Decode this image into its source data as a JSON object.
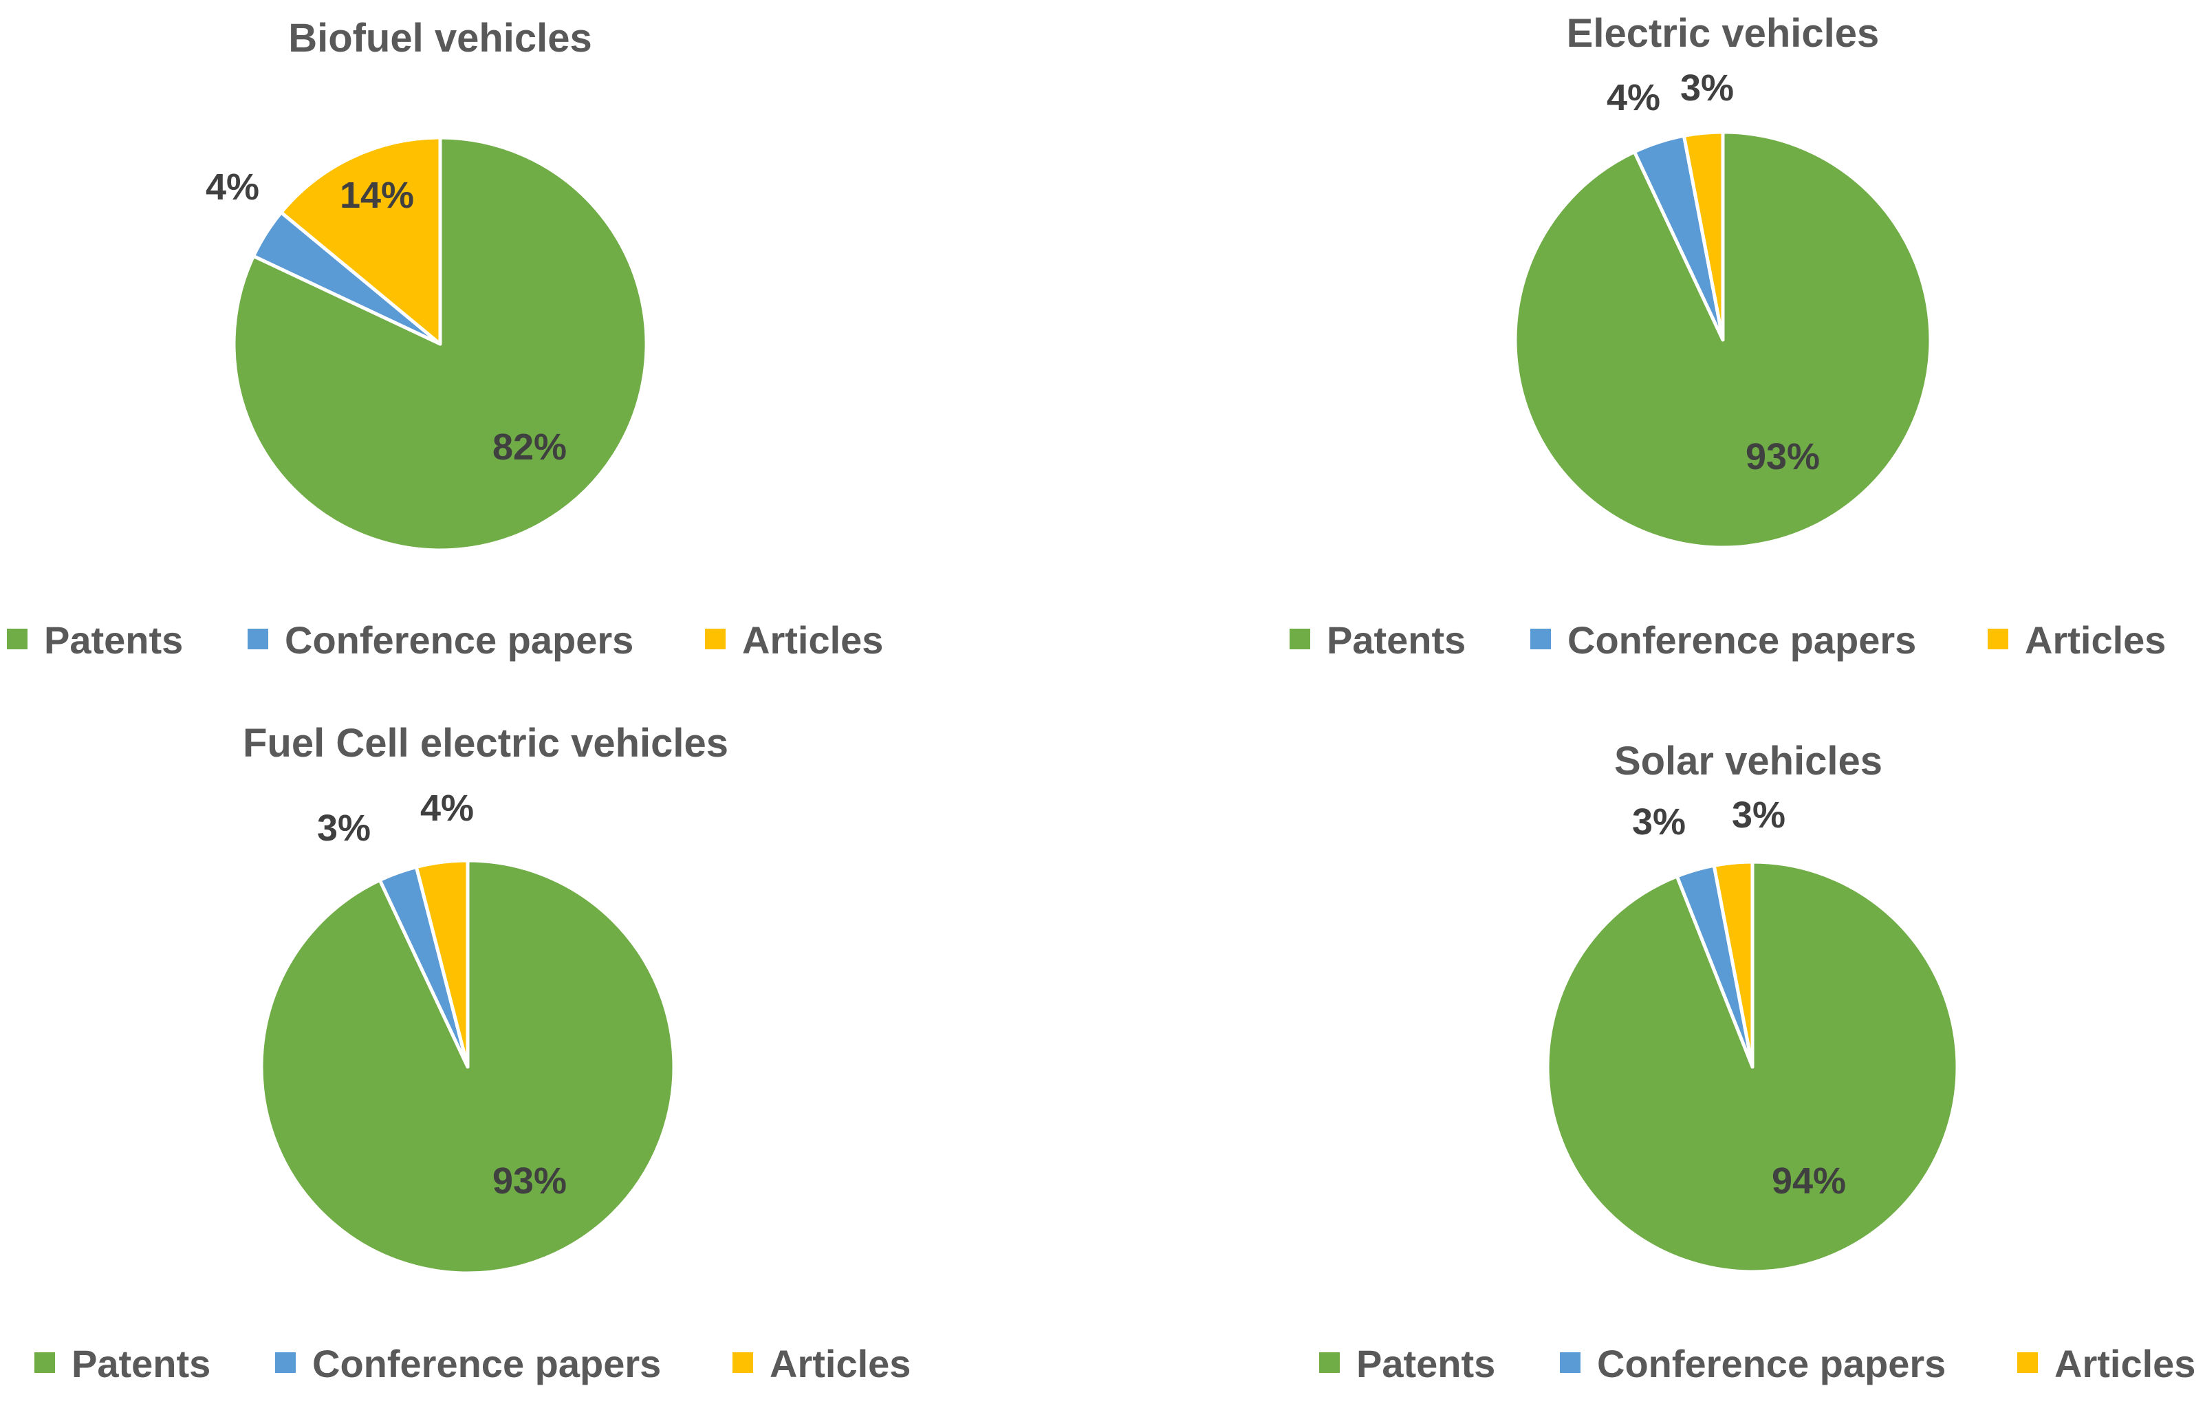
{
  "chart_data": [
    {
      "type": "pie",
      "title": "Biofuel vehicles",
      "categories": [
        "Patents",
        "Conference papers",
        "Articles"
      ],
      "values": [
        82,
        4,
        14
      ],
      "data_labels": [
        "82%",
        "4%",
        "14%"
      ],
      "colors": [
        "#70AD47",
        "#5B9BD5",
        "#FFC000"
      ],
      "legend_position": "bottom"
    },
    {
      "type": "pie",
      "title": "Electric vehicles",
      "categories": [
        "Patents",
        "Conference papers",
        "Articles"
      ],
      "values": [
        93,
        4,
        3
      ],
      "data_labels": [
        "93%",
        "4%",
        "3%"
      ],
      "colors": [
        "#70AD47",
        "#5B9BD5",
        "#FFC000"
      ],
      "legend_position": "bottom"
    },
    {
      "type": "pie",
      "title": "Fuel Cell electric vehicles",
      "categories": [
        "Patents",
        "Conference papers",
        "Articles"
      ],
      "values": [
        93,
        3,
        4
      ],
      "data_labels": [
        "93%",
        "3%",
        "4%"
      ],
      "colors": [
        "#70AD47",
        "#5B9BD5",
        "#FFC000"
      ],
      "legend_position": "bottom"
    },
    {
      "type": "pie",
      "title": "Solar vehicles",
      "categories": [
        "Patents",
        "Conference papers",
        "Articles"
      ],
      "values": [
        94,
        3,
        3
      ],
      "data_labels": [
        "94%",
        "3%",
        "3%"
      ],
      "colors": [
        "#70AD47",
        "#5B9BD5",
        "#FFC000"
      ],
      "legend_position": "bottom"
    }
  ]
}
